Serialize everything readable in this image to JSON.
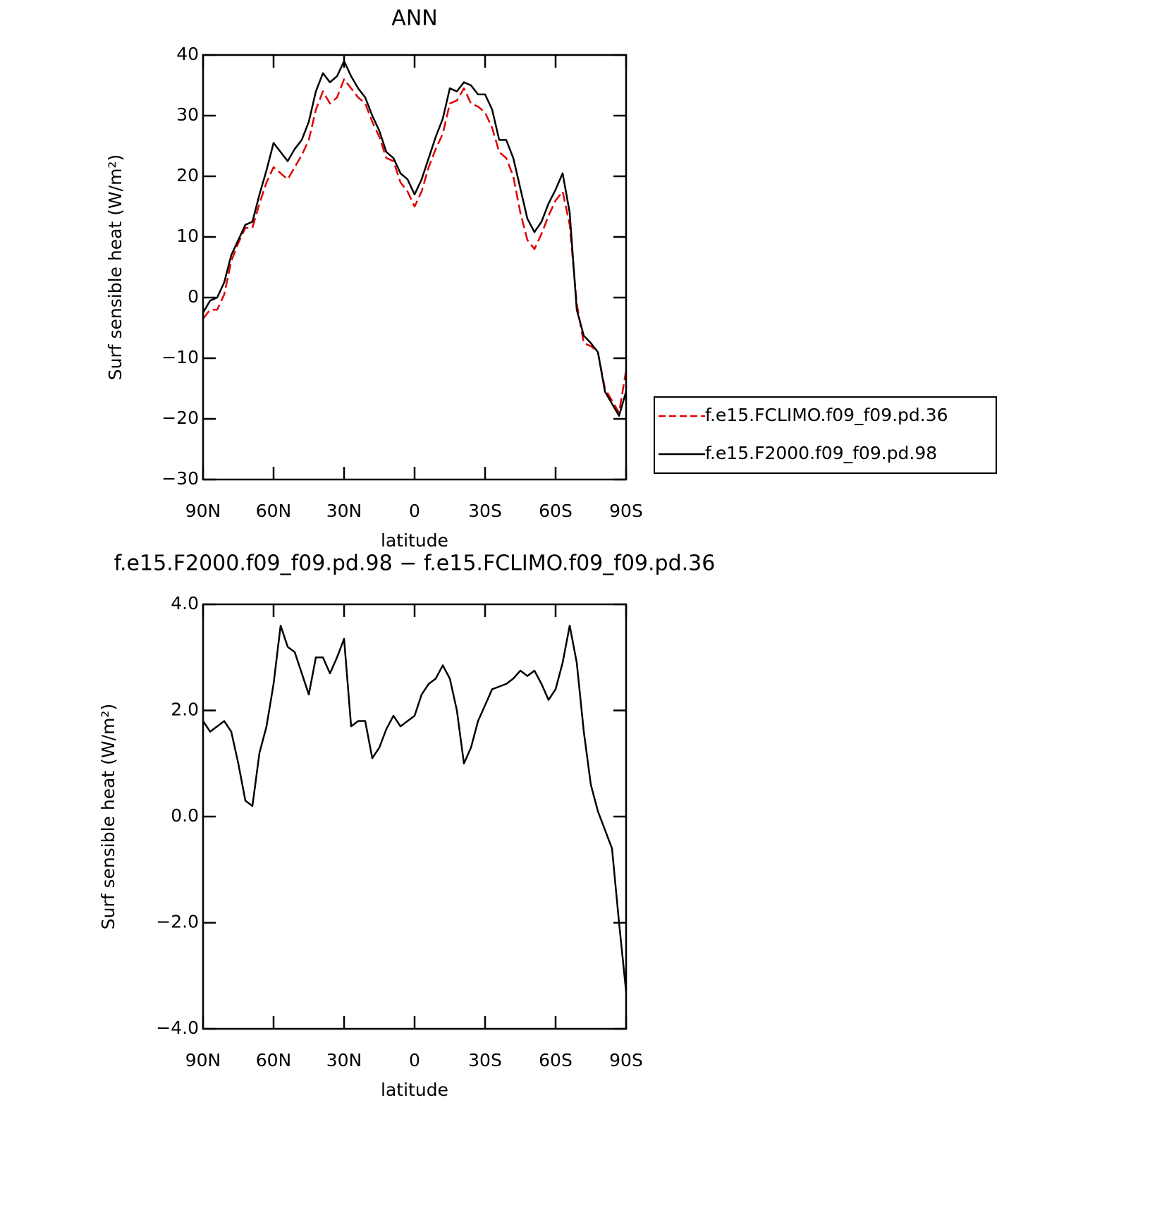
{
  "chart_data": [
    {
      "type": "line",
      "title": "ANN",
      "x_label": "latitude",
      "y_label": "Surf sensible heat (W/m²)",
      "x": [
        90,
        87,
        84,
        81,
        78,
        75,
        72,
        69,
        66,
        63,
        60,
        57,
        54,
        51,
        48,
        45,
        42,
        39,
        36,
        33,
        30,
        27,
        24,
        21,
        18,
        15,
        12,
        9,
        6,
        3,
        0,
        -3,
        -6,
        -9,
        -12,
        -15,
        -18,
        -21,
        -24,
        -27,
        -30,
        -33,
        -36,
        -39,
        -42,
        -45,
        -48,
        -51,
        -54,
        -57,
        -60,
        -63,
        -66,
        -69,
        -72,
        -75,
        -78,
        -81,
        -84,
        -87,
        -90
      ],
      "series": [
        {
          "name": "f.e15.FCLIMO.f09_f09.pd.36",
          "color": "#e00000",
          "dash": true,
          "values": [
            -3.5,
            -2,
            -2,
            0.5,
            6,
            9,
            11.5,
            11.5,
            15.5,
            19,
            21.5,
            20.5,
            19.5,
            21.5,
            23.5,
            26,
            31,
            34,
            32,
            33,
            36,
            34.5,
            33,
            32,
            29,
            26.5,
            23,
            22.5,
            19,
            17.5,
            15,
            17.5,
            21.5,
            24.5,
            27,
            32,
            32.5,
            34.5,
            32,
            31.5,
            30.5,
            28,
            24,
            23,
            20,
            14,
            9.5,
            8,
            10.5,
            13.5,
            16,
            17.5,
            12,
            -1,
            -7.5,
            -8,
            -9,
            -15,
            -17,
            -19,
            -12
          ]
        },
        {
          "name": "f.e15.F2000.f09_f09.pd.98",
          "color": "#000000",
          "dash": false,
          "values": [
            -2.5,
            -0.5,
            0,
            2.5,
            7,
            9.5,
            12,
            12.5,
            17,
            21,
            25.5,
            24,
            22.5,
            24.5,
            26,
            29,
            34,
            37,
            35.5,
            36.5,
            39,
            36.5,
            34.5,
            33,
            30,
            27.5,
            24,
            23,
            20.5,
            19.5,
            17,
            19.5,
            23,
            26.5,
            29.5,
            34.5,
            34,
            35.5,
            35,
            33.5,
            33.5,
            31,
            26,
            26,
            23,
            18,
            13,
            10.8,
            12.5,
            15.5,
            17.8,
            20.5,
            14,
            -2,
            -6.3,
            -7.5,
            -9,
            -15.5,
            -17.5,
            -19.5,
            -15.5
          ]
        }
      ],
      "xlim": [
        90,
        -90
      ],
      "xticks": [
        {
          "value": 90,
          "label": "90N"
        },
        {
          "value": 60,
          "label": "60N"
        },
        {
          "value": 30,
          "label": "30N"
        },
        0,
        {
          "value": -30,
          "label": "30S"
        },
        {
          "value": -60,
          "label": "60S"
        },
        {
          "value": -90,
          "label": "90S"
        }
      ],
      "ylim": [
        -30,
        40
      ],
      "yticks": [
        {
          "value": -30,
          "label": "−30"
        },
        {
          "value": -20,
          "label": "−20"
        },
        {
          "value": -10,
          "label": "−10"
        },
        0,
        10,
        20,
        30,
        40
      ],
      "legend": "right"
    },
    {
      "type": "line",
      "title": "f.e15.F2000.f09_f09.pd.98 − f.e15.FCLIMO.f09_f09.pd.36",
      "x_label": "latitude",
      "y_label": "Surf sensible heat (W/m²)",
      "x": [
        90,
        87,
        84,
        81,
        78,
        75,
        72,
        69,
        66,
        63,
        60,
        57,
        54,
        51,
        48,
        45,
        42,
        39,
        36,
        33,
        30,
        27,
        24,
        21,
        18,
        15,
        12,
        9,
        6,
        3,
        0,
        -3,
        -6,
        -9,
        -12,
        -15,
        -18,
        -21,
        -24,
        -27,
        -30,
        -33,
        -36,
        -39,
        -42,
        -45,
        -48,
        -51,
        -54,
        -57,
        -60,
        -63,
        -66,
        -69,
        -72,
        -75,
        -78,
        -81,
        -84,
        -87,
        -90
      ],
      "series": [
        {
          "color": "#000000",
          "dash": false,
          "values": [
            1.8,
            1.6,
            1.7,
            1.8,
            1.6,
            1.0,
            0.3,
            0.2,
            1.2,
            1.7,
            2.5,
            3.6,
            3.2,
            3.1,
            2.7,
            2.3,
            3.0,
            3.0,
            2.7,
            3.0,
            3.35,
            1.7,
            1.8,
            1.8,
            1.1,
            1.3,
            1.65,
            1.9,
            1.7,
            1.8,
            1.9,
            2.3,
            2.5,
            2.6,
            2.85,
            2.6,
            2.0,
            1.0,
            1.3,
            1.8,
            2.1,
            2.4,
            2.45,
            2.5,
            2.6,
            2.75,
            2.65,
            2.75,
            2.5,
            2.2,
            2.4,
            2.9,
            3.6,
            2.9,
            1.6,
            0.6,
            0.1,
            -0.25,
            -0.6,
            -2.0,
            -3.3
          ]
        }
      ],
      "xlim": [
        90,
        -90
      ],
      "xticks": [
        {
          "value": 90,
          "label": "90N"
        },
        {
          "value": 60,
          "label": "60N"
        },
        {
          "value": 30,
          "label": "30N"
        },
        0,
        {
          "value": -30,
          "label": "30S"
        },
        {
          "value": -60,
          "label": "60S"
        },
        {
          "value": -90,
          "label": "90S"
        }
      ],
      "ylim": [
        -4,
        4
      ],
      "yticks": [
        {
          "value": -4,
          "label": "−4.0"
        },
        {
          "value": -2,
          "label": "−2.0"
        },
        {
          "value": 0,
          "label": "0.0"
        },
        {
          "value": 2,
          "label": "2.0"
        },
        {
          "value": 4,
          "label": "4.0"
        }
      ]
    }
  ]
}
